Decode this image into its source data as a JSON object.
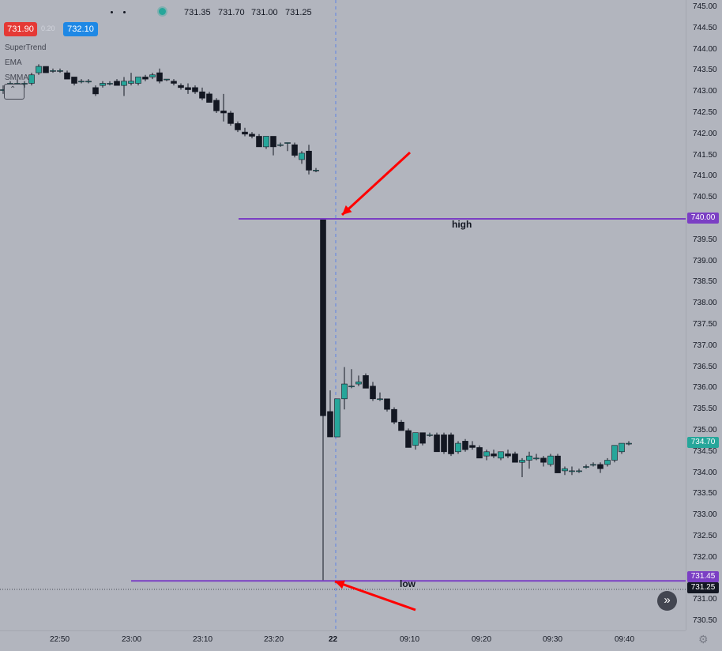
{
  "legend": {
    "ohlc_values": [
      "731.35",
      "731.70",
      "731.00",
      "731.25"
    ],
    "sell_price": "731.90",
    "spread": "0.20",
    "buy_price": "732.10",
    "indicators": [
      "SuperTrend",
      "EMA",
      "SMMA"
    ],
    "collapse_icon": "chevron-up-icon"
  },
  "colors": {
    "background": "#b2b5be",
    "up_candle": "#26a69a",
    "down_candle": "#131722",
    "level_line": "#7b3fc4",
    "arrow": "#ff0000",
    "sell": "#e53935",
    "buy": "#1e88e5"
  },
  "price_axis": {
    "labels": [
      "745.00",
      "744.50",
      "744.00",
      "743.50",
      "743.00",
      "742.50",
      "742.00",
      "741.50",
      "741.00",
      "740.50",
      "740.00",
      "739.50",
      "739.00",
      "738.50",
      "738.00",
      "737.50",
      "737.00",
      "736.50",
      "736.00",
      "735.50",
      "735.00",
      "734.50",
      "734.00",
      "733.50",
      "733.00",
      "732.50",
      "732.00",
      "731.50",
      "731.00",
      "730.50"
    ],
    "high_badge": "740.00",
    "low_badge": "731.45",
    "last_badge": "734.70",
    "cross_badge": "731.25"
  },
  "time_axis": {
    "labels": [
      "22:50",
      "23:00",
      "23:10",
      "23:20",
      "22",
      "09:10",
      "09:20",
      "09:30",
      "09:40"
    ]
  },
  "annotations": {
    "high_label": "high",
    "low_label": "low"
  },
  "chart_data": {
    "type": "candlestick",
    "ylim": [
      730.25,
      745.1
    ],
    "high_level": 740.0,
    "low_level": 731.45,
    "crosshair_price": 731.25,
    "session_break_label": "22",
    "candles": [
      {
        "o": 743.05,
        "h": 743.15,
        "l": 742.95,
        "c": 743.05
      },
      {
        "o": 743.1,
        "h": 743.25,
        "l": 743.0,
        "c": 743.2
      },
      {
        "o": 743.15,
        "h": 743.3,
        "l": 743.05,
        "c": 743.2
      },
      {
        "o": 743.2,
        "h": 743.25,
        "l": 743.1,
        "c": 743.2
      },
      {
        "o": 743.2,
        "h": 743.45,
        "l": 743.15,
        "c": 743.4
      },
      {
        "o": 743.45,
        "h": 743.65,
        "l": 743.4,
        "c": 743.6
      },
      {
        "o": 743.6,
        "h": 743.6,
        "l": 743.45,
        "c": 743.45
      },
      {
        "o": 743.5,
        "h": 743.55,
        "l": 743.45,
        "c": 743.5
      },
      {
        "o": 743.5,
        "h": 743.55,
        "l": 743.45,
        "c": 743.5
      },
      {
        "o": 743.45,
        "h": 743.5,
        "l": 743.3,
        "c": 743.3
      },
      {
        "o": 743.35,
        "h": 743.35,
        "l": 743.15,
        "c": 743.2
      },
      {
        "o": 743.25,
        "h": 743.3,
        "l": 743.2,
        "c": 743.25
      },
      {
        "o": 743.25,
        "h": 743.3,
        "l": 743.2,
        "c": 743.25
      },
      {
        "o": 743.1,
        "h": 743.15,
        "l": 742.9,
        "c": 742.95
      },
      {
        "o": 743.15,
        "h": 743.25,
        "l": 743.1,
        "c": 743.2
      },
      {
        "o": 743.2,
        "h": 743.25,
        "l": 743.15,
        "c": 743.2
      },
      {
        "o": 743.25,
        "h": 743.3,
        "l": 743.15,
        "c": 743.15
      },
      {
        "o": 743.15,
        "h": 743.35,
        "l": 742.9,
        "c": 743.25
      },
      {
        "o": 743.2,
        "h": 743.45,
        "l": 743.15,
        "c": 743.25
      },
      {
        "o": 743.2,
        "h": 743.35,
        "l": 743.15,
        "c": 743.35
      },
      {
        "o": 743.35,
        "h": 743.4,
        "l": 743.25,
        "c": 743.3
      },
      {
        "o": 743.35,
        "h": 743.45,
        "l": 743.3,
        "c": 743.4
      },
      {
        "o": 743.45,
        "h": 743.55,
        "l": 743.2,
        "c": 743.25
      },
      {
        "o": 743.3,
        "h": 743.3,
        "l": 743.25,
        "c": 743.3
      },
      {
        "o": 743.25,
        "h": 743.3,
        "l": 743.15,
        "c": 743.2
      },
      {
        "o": 743.15,
        "h": 743.2,
        "l": 743.05,
        "c": 743.1
      },
      {
        "o": 743.1,
        "h": 743.2,
        "l": 742.95,
        "c": 743.05
      },
      {
        "o": 743.1,
        "h": 743.15,
        "l": 742.95,
        "c": 743.0
      },
      {
        "o": 743.0,
        "h": 743.1,
        "l": 742.8,
        "c": 742.85
      },
      {
        "o": 742.95,
        "h": 743.0,
        "l": 742.75,
        "c": 742.75
      },
      {
        "o": 742.8,
        "h": 742.85,
        "l": 742.5,
        "c": 742.55
      },
      {
        "o": 742.55,
        "h": 742.95,
        "l": 742.3,
        "c": 742.5
      },
      {
        "o": 742.5,
        "h": 742.55,
        "l": 742.2,
        "c": 742.25
      },
      {
        "o": 742.25,
        "h": 742.3,
        "l": 742.05,
        "c": 742.1
      },
      {
        "o": 742.05,
        "h": 742.15,
        "l": 741.95,
        "c": 742.0
      },
      {
        "o": 742.0,
        "h": 742.05,
        "l": 741.9,
        "c": 741.95
      },
      {
        "o": 741.95,
        "h": 742.0,
        "l": 741.7,
        "c": 741.7
      },
      {
        "o": 741.7,
        "h": 741.95,
        "l": 741.65,
        "c": 741.95
      },
      {
        "o": 741.95,
        "h": 741.95,
        "l": 741.5,
        "c": 741.7
      },
      {
        "o": 741.75,
        "h": 741.8,
        "l": 741.7,
        "c": 741.75
      },
      {
        "o": 741.8,
        "h": 741.8,
        "l": 741.6,
        "c": 741.8
      },
      {
        "o": 741.75,
        "h": 741.8,
        "l": 741.45,
        "c": 741.5
      },
      {
        "o": 741.4,
        "h": 741.6,
        "l": 741.3,
        "c": 741.55
      },
      {
        "o": 741.6,
        "h": 741.75,
        "l": 741.05,
        "c": 741.15
      },
      {
        "o": 741.15,
        "h": 741.2,
        "l": 741.1,
        "c": 741.15
      },
      {
        "o": 740.0,
        "h": 740.0,
        "l": 731.45,
        "c": 735.35
      },
      {
        "o": 735.45,
        "h": 735.95,
        "l": 734.85,
        "c": 734.85
      },
      {
        "o": 734.85,
        "h": 735.75,
        "l": 734.85,
        "c": 735.75
      },
      {
        "o": 735.75,
        "h": 736.5,
        "l": 735.5,
        "c": 736.1
      },
      {
        "o": 736.05,
        "h": 736.45,
        "l": 736.0,
        "c": 736.05
      },
      {
        "o": 736.1,
        "h": 736.3,
        "l": 736.05,
        "c": 736.15
      },
      {
        "o": 736.3,
        "h": 736.35,
        "l": 736.0,
        "c": 736.0
      },
      {
        "o": 736.05,
        "h": 736.15,
        "l": 735.7,
        "c": 735.75
      },
      {
        "o": 735.75,
        "h": 735.9,
        "l": 735.7,
        "c": 735.75
      },
      {
        "o": 735.75,
        "h": 735.75,
        "l": 735.45,
        "c": 735.5
      },
      {
        "o": 735.5,
        "h": 735.55,
        "l": 735.15,
        "c": 735.2
      },
      {
        "o": 735.2,
        "h": 735.25,
        "l": 735.0,
        "c": 735.0
      },
      {
        "o": 735.0,
        "h": 735.05,
        "l": 734.6,
        "c": 734.6
      },
      {
        "o": 734.65,
        "h": 734.95,
        "l": 734.55,
        "c": 734.95
      },
      {
        "o": 734.95,
        "h": 734.95,
        "l": 734.65,
        "c": 734.7
      },
      {
        "o": 734.9,
        "h": 734.95,
        "l": 734.85,
        "c": 734.9
      },
      {
        "o": 734.9,
        "h": 734.95,
        "l": 734.5,
        "c": 734.5
      },
      {
        "o": 734.9,
        "h": 734.95,
        "l": 734.45,
        "c": 734.5
      },
      {
        "o": 734.9,
        "h": 734.95,
        "l": 734.4,
        "c": 734.45
      },
      {
        "o": 734.5,
        "h": 734.75,
        "l": 734.45,
        "c": 734.7
      },
      {
        "o": 734.75,
        "h": 734.8,
        "l": 734.5,
        "c": 734.55
      },
      {
        "o": 734.65,
        "h": 734.75,
        "l": 734.55,
        "c": 734.6
      },
      {
        "o": 734.6,
        "h": 734.65,
        "l": 734.35,
        "c": 734.35
      },
      {
        "o": 734.4,
        "h": 734.55,
        "l": 734.3,
        "c": 734.5
      },
      {
        "o": 734.45,
        "h": 734.55,
        "l": 734.35,
        "c": 734.4
      },
      {
        "o": 734.35,
        "h": 734.5,
        "l": 734.3,
        "c": 734.5
      },
      {
        "o": 734.45,
        "h": 734.55,
        "l": 734.35,
        "c": 734.4
      },
      {
        "o": 734.45,
        "h": 734.5,
        "l": 734.25,
        "c": 734.25
      },
      {
        "o": 734.25,
        "h": 734.35,
        "l": 733.9,
        "c": 734.3
      },
      {
        "o": 734.3,
        "h": 734.5,
        "l": 734.1,
        "c": 734.4
      },
      {
        "o": 734.35,
        "h": 734.45,
        "l": 734.3,
        "c": 734.35
      },
      {
        "o": 734.35,
        "h": 734.4,
        "l": 734.15,
        "c": 734.25
      },
      {
        "o": 734.2,
        "h": 734.45,
        "l": 734.15,
        "c": 734.4
      },
      {
        "o": 734.4,
        "h": 734.45,
        "l": 734.0,
        "c": 734.0
      },
      {
        "o": 734.05,
        "h": 734.15,
        "l": 733.95,
        "c": 734.1
      },
      {
        "o": 734.05,
        "h": 734.15,
        "l": 733.95,
        "c": 734.05
      },
      {
        "o": 734.05,
        "h": 734.1,
        "l": 734.0,
        "c": 734.05
      },
      {
        "o": 734.15,
        "h": 734.2,
        "l": 734.1,
        "c": 734.15
      },
      {
        "o": 734.2,
        "h": 734.25,
        "l": 734.15,
        "c": 734.2
      },
      {
        "o": 734.2,
        "h": 734.25,
        "l": 734.0,
        "c": 734.1
      },
      {
        "o": 734.2,
        "h": 734.35,
        "l": 734.15,
        "c": 734.3
      },
      {
        "o": 734.3,
        "h": 734.65,
        "l": 734.25,
        "c": 734.65
      },
      {
        "o": 734.5,
        "h": 734.7,
        "l": 734.45,
        "c": 734.7
      },
      {
        "o": 734.7,
        "h": 734.75,
        "l": 734.65,
        "c": 734.7
      }
    ]
  }
}
